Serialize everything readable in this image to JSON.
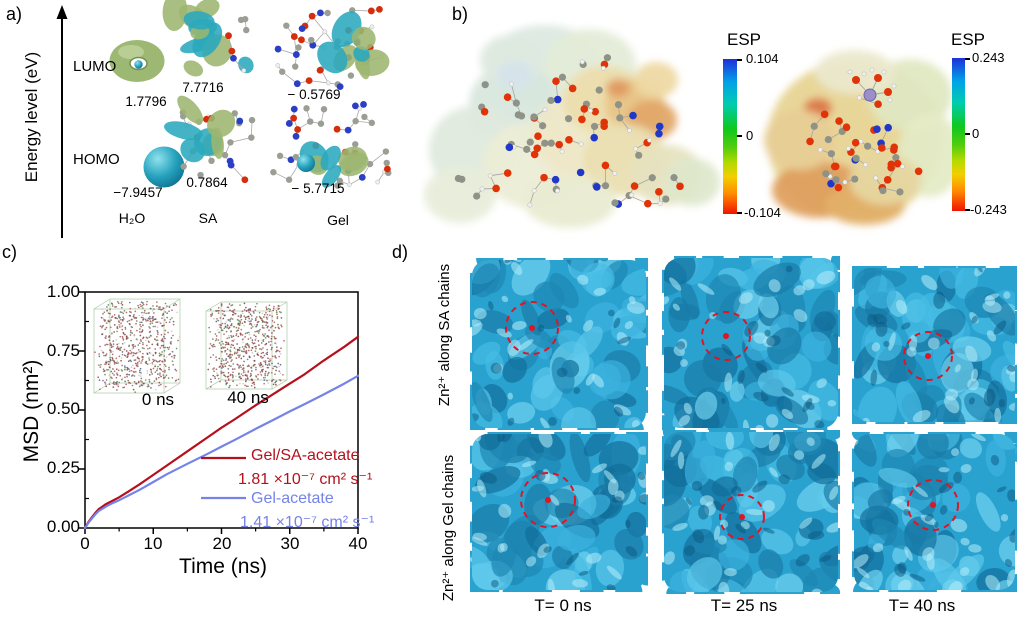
{
  "panel_a": {
    "label": "a)",
    "axis_label": "Energy level (eV)",
    "lumo_label": "LUMO",
    "homo_label": "HOMO",
    "columns": [
      {
        "name": "H₂O",
        "lumo_value": "1.7796",
        "homo_value": "−7.9457"
      },
      {
        "name": "SA",
        "lumo_value": "7.7716",
        "homo_value": "0.7864"
      },
      {
        "name": "Gel",
        "lumo_value": "− 0.5769",
        "homo_value": "− 5.7715"
      }
    ]
  },
  "panel_b": {
    "label": "b)",
    "colorbars": [
      {
        "title": "ESP",
        "max": "0.104",
        "mid": "0",
        "min": "-0.104"
      },
      {
        "title": "ESP",
        "max": "0.243",
        "mid": "0",
        "min": "-0.243"
      }
    ]
  },
  "panel_c": {
    "label": "c)"
  },
  "chart_data": {
    "type": "line",
    "xlabel": "Time (ns)",
    "ylabel": "MSD (nm²)",
    "xlim": [
      0,
      40
    ],
    "ylim": [
      0,
      1.0
    ],
    "xticks": [
      "0",
      "10",
      "20",
      "30",
      "40"
    ],
    "yticks": [
      "0.00",
      "0.25",
      "0.50",
      "0.75",
      "1.00"
    ],
    "grid": false,
    "legend_position": "lower right inside",
    "series": [
      {
        "name": "Gel/SA-acetate",
        "diffusion": "1.81 ×10⁻⁷ cm² s⁻¹",
        "color": "#b5101d",
        "x": [
          0,
          0.5,
          1,
          1.5,
          2,
          3,
          4,
          5,
          6,
          8,
          10,
          12,
          15,
          18,
          20,
          22,
          25,
          28,
          30,
          32,
          35,
          38,
          40
        ],
        "y": [
          0,
          0.025,
          0.045,
          0.063,
          0.08,
          0.1,
          0.115,
          0.13,
          0.148,
          0.185,
          0.225,
          0.265,
          0.325,
          0.385,
          0.425,
          0.462,
          0.52,
          0.575,
          0.612,
          0.648,
          0.71,
          0.768,
          0.81
        ]
      },
      {
        "name": "Gel-acetate",
        "diffusion": "1.41 ×10⁻⁷ cm² s⁻¹",
        "color": "#7583e8",
        "x": [
          0,
          0.5,
          1,
          1.5,
          2,
          3,
          4,
          5,
          6,
          8,
          10,
          12,
          15,
          18,
          20,
          22,
          25,
          28,
          30,
          32,
          35,
          38,
          40
        ],
        "y": [
          0,
          0.022,
          0.04,
          0.057,
          0.072,
          0.09,
          0.105,
          0.118,
          0.132,
          0.162,
          0.195,
          0.228,
          0.272,
          0.315,
          0.345,
          0.374,
          0.42,
          0.464,
          0.494,
          0.522,
          0.566,
          0.612,
          0.645
        ]
      }
    ],
    "insets": [
      {
        "label": "0 ns"
      },
      {
        "label": "40 ns"
      }
    ]
  },
  "panel_d": {
    "label": "d)",
    "rows": [
      {
        "label": "Zn²⁺ along SA chains"
      },
      {
        "label": "Zn²⁺ along Gel chains"
      }
    ],
    "time_labels": [
      "T= 0 ns",
      "T= 25 ns",
      "T= 40 ns"
    ]
  }
}
